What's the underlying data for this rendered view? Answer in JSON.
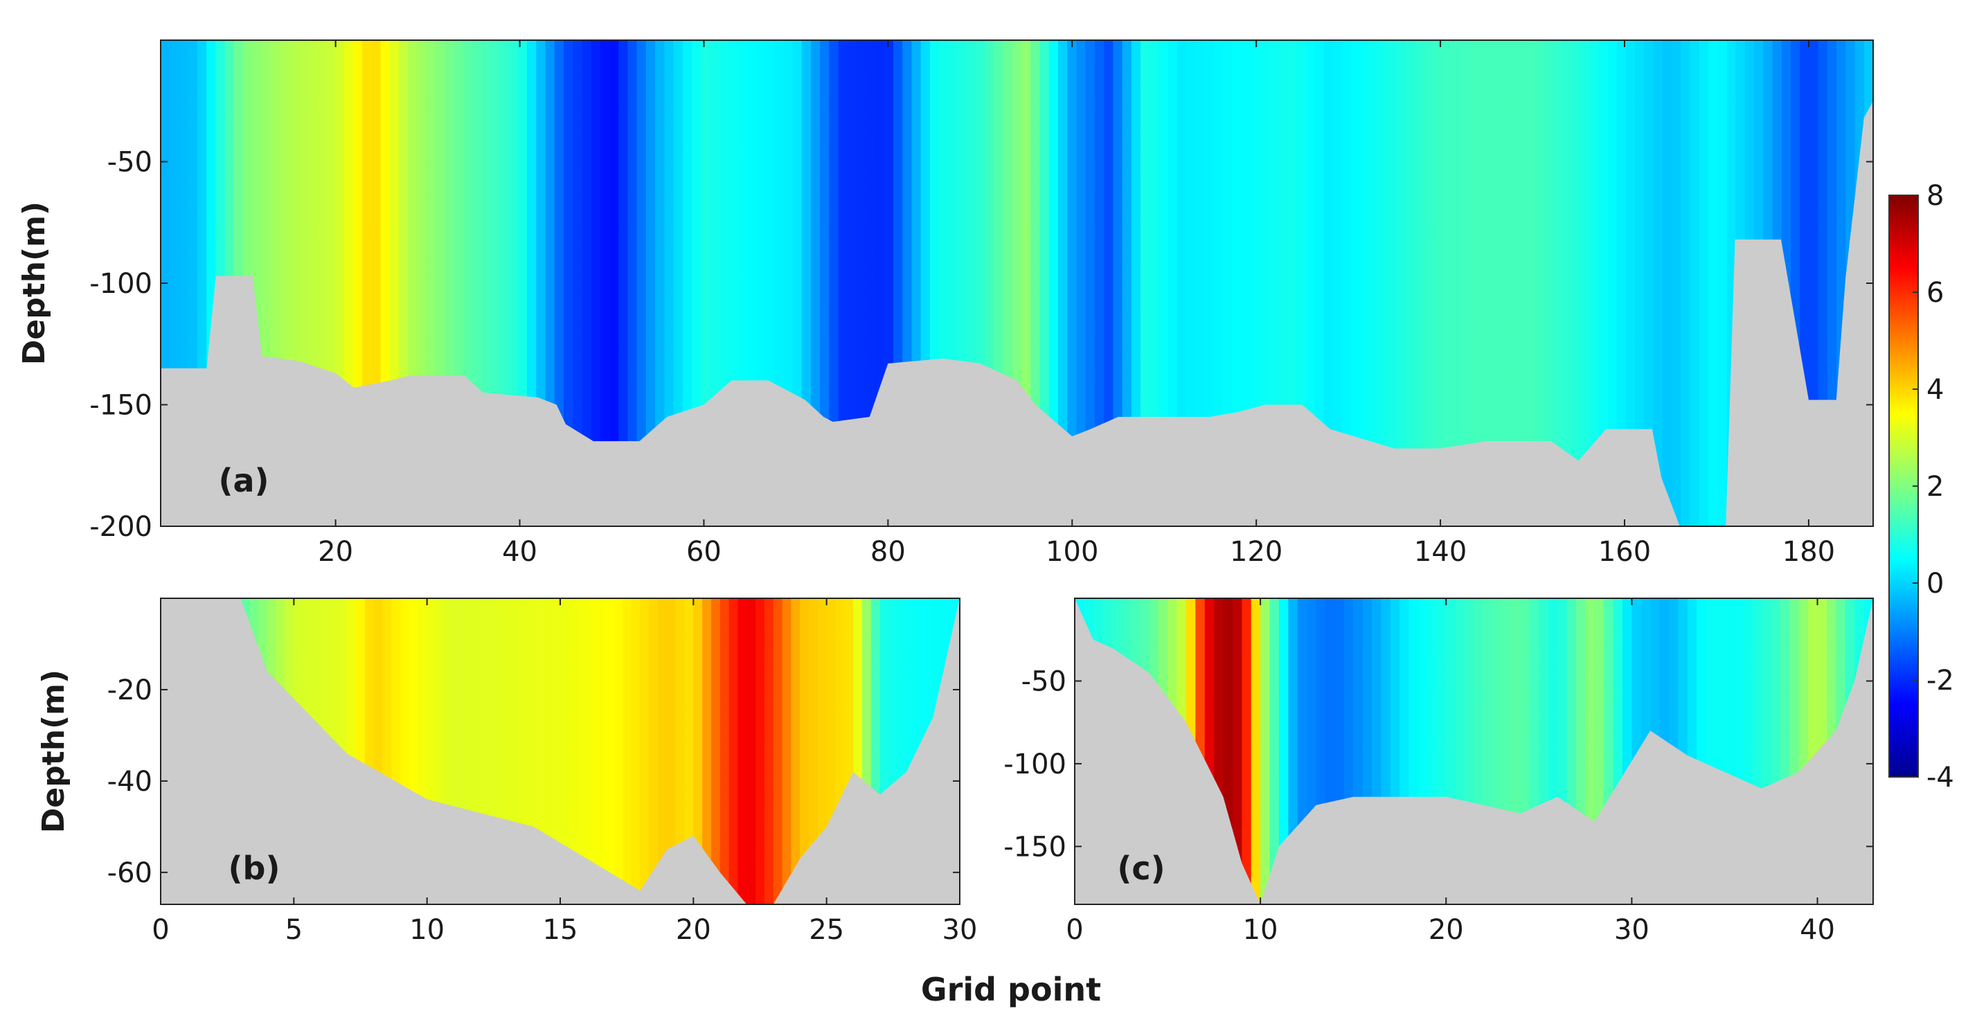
{
  "figure": {
    "xlabel": "Grid point",
    "colorbar": {
      "min": -4,
      "max": 8,
      "ticks": [
        "8",
        "6",
        "4",
        "2",
        "0",
        "-2",
        "-4"
      ],
      "colormap": "jet"
    }
  },
  "chart_data": [
    {
      "type": "heatmap",
      "panel_label": "(a)",
      "xlabel": "",
      "ylabel": "Depth(m)",
      "xlim": [
        1,
        187
      ],
      "ylim": [
        -200,
        0
      ],
      "xticks": [
        "20",
        "40",
        "60",
        "80",
        "100",
        "120",
        "140",
        "160",
        "180"
      ],
      "yticks": [
        "-50",
        "-100",
        "-150",
        "-200"
      ],
      "bottom_profile": {
        "x": [
          1,
          6,
          7,
          11,
          12,
          16,
          20,
          22,
          26,
          28,
          34,
          36,
          42,
          44,
          45,
          48,
          53,
          56,
          60,
          63,
          67,
          71,
          73,
          74,
          78,
          80,
          86,
          90,
          94,
          96,
          100,
          102,
          105,
          108,
          115,
          118,
          121,
          125,
          128,
          135,
          140,
          145,
          152,
          155,
          158,
          163,
          164,
          166,
          171,
          172,
          177,
          180,
          183,
          184,
          186,
          187
        ],
        "depth": [
          -135,
          -135,
          -97,
          -97,
          -130,
          -132,
          -137,
          -143,
          -140,
          -138,
          -138,
          -145,
          -147,
          -150,
          -158,
          -165,
          -165,
          -155,
          -150,
          -140,
          -140,
          -148,
          -155,
          -157,
          -155,
          -133,
          -131,
          -133,
          -140,
          -150,
          -163,
          -160,
          -155,
          -155,
          -155,
          -153,
          -150,
          -150,
          -160,
          -168,
          -168,
          -165,
          -165,
          -173,
          -160,
          -160,
          -180,
          -200,
          -200,
          -82,
          -82,
          -148,
          -148,
          -98,
          -32,
          -25
        ]
      },
      "field": {
        "x": [
          1,
          5,
          10,
          15,
          20,
          24,
          28,
          34,
          40,
          45,
          50,
          55,
          60,
          65,
          70,
          75,
          80,
          85,
          90,
          95,
          100,
          104,
          108,
          112,
          118,
          124,
          128,
          134,
          140,
          145,
          150,
          155,
          160,
          165,
          170,
          175,
          180,
          187
        ],
        "depth": [
          0,
          -30,
          -60,
          -90,
          -120,
          -150,
          -180
        ],
        "values": [
          [
            -0.4,
            -0.2,
            2.0,
            2.6,
            2.9,
            4.0,
            2.6,
            1.6,
            0.9,
            -1.6,
            -2.4,
            -0.4,
            0.8,
            0.5,
            0.3,
            -1.9,
            -2.0,
            0.6,
            1.0,
            2.2,
            -0.6,
            -1.6,
            0.8,
            0.3,
            0.5,
            0.7,
            0.3,
            0.7,
            1.2,
            1.3,
            1.3,
            0.9,
            0.3,
            -0.2,
            0.5,
            -0.3,
            -1.8,
            0.0
          ],
          [
            -0.4,
            0.2,
            2.0,
            2.6,
            3.0,
            3.5,
            2.5,
            1.8,
            0.9,
            -1.5,
            -2.3,
            -0.8,
            0.8,
            0.5,
            0.3,
            -1.9,
            -1.9,
            0.6,
            1.2,
            1.8,
            -0.6,
            -1.6,
            0.9,
            -0.4,
            0.8,
            0.8,
            0.3,
            0.7,
            1.5,
            1.6,
            1.4,
            0.8,
            0.2,
            -0.3,
            0.5,
            -0.2,
            -0.6,
            0.3
          ],
          [
            0.6,
            0.6,
            1.8,
            2.2,
            2.6,
            2.2,
            2.0,
            1.6,
            0.8,
            -1.4,
            -2.2,
            -0.9,
            0.8,
            0.6,
            0.2,
            -1.8,
            -1.9,
            0.6,
            1.2,
            1.5,
            -0.5,
            -1.5,
            0.8,
            -0.6,
            0.6,
            0.8,
            0.4,
            0.8,
            1.6,
            1.7,
            1.4,
            0.8,
            0.2,
            0.0,
            0.5,
            0.2,
            -0.2,
            0.4
          ],
          [
            0.6,
            0.7,
            1.5,
            1.9,
            2.2,
            2.0,
            1.4,
            1.1,
            0.6,
            -1.3,
            -2.2,
            -0.9,
            0.8,
            0.6,
            0.1,
            -1.7,
            -1.8,
            0.6,
            1.0,
            1.2,
            -0.5,
            -1.4,
            0.7,
            0.5,
            0.6,
            0.7,
            0.4,
            0.8,
            1.4,
            1.6,
            1.1,
            0.8,
            0.5,
            0.4,
            0.5,
            0.4,
            0.3,
            0.5
          ],
          [
            0.6,
            0.7,
            0.9,
            1.0,
            1.1,
            1.2,
            0.8,
            0.7,
            0.3,
            -1.1,
            -2.1,
            -0.8,
            0.6,
            0.5,
            0.1,
            -1.6,
            -1.7,
            0.3,
            0.7,
            1.6,
            -0.5,
            -1.3,
            0.5,
            0.5,
            0.5,
            0.5,
            0.4,
            0.6,
            0.8,
            0.8,
            0.6,
            0.5,
            0.1,
            0.4,
            0.5,
            0.4,
            -0.5,
            0.5
          ],
          [
            0.5,
            0.6,
            0.8,
            0.9,
            0.9,
            0.9,
            0.7,
            0.6,
            0.4,
            -0.7,
            -1.0,
            -0.4,
            0.3,
            0.2,
            0.0,
            -0.8,
            -0.9,
            0.2,
            0.4,
            0.5,
            -0.8,
            -0.6,
            0.2,
            -0.4,
            -0.6,
            0.2,
            0.3,
            0.4,
            0.5,
            0.4,
            0.4,
            0.4,
            0.1,
            0.3,
            0.4,
            0.3,
            -0.3,
            0.4
          ],
          [
            0.5,
            0.5,
            0.6,
            0.6,
            0.6,
            0.6,
            0.6,
            0.5,
            0.4,
            0.0,
            0.0,
            0.1,
            0.3,
            0.2,
            0.1,
            0.0,
            0.0,
            0.2,
            0.3,
            0.3,
            0.0,
            0.1,
            0.2,
            0.2,
            0.2,
            0.2,
            0.3,
            0.3,
            0.3,
            0.3,
            0.3,
            0.3,
            0.2,
            0.2,
            0.3,
            0.3,
            0.2,
            0.3
          ]
        ]
      }
    },
    {
      "type": "heatmap",
      "panel_label": "(b)",
      "xlabel": "",
      "ylabel": "Depth(m)",
      "xlim": [
        0,
        30
      ],
      "ylim": [
        -67,
        0
      ],
      "xticks": [
        "0",
        "5",
        "10",
        "15",
        "20",
        "25",
        "30"
      ],
      "yticks": [
        "-20",
        "-40",
        "-60"
      ],
      "bottom_profile": {
        "x": [
          0,
          3,
          4,
          7,
          10,
          14,
          18,
          19,
          20,
          21,
          22,
          23,
          24,
          25,
          26,
          27,
          28,
          29,
          30
        ],
        "depth": [
          0,
          0,
          -16,
          -34,
          -44,
          -50,
          -64,
          -55,
          -52,
          -60,
          -67,
          -67,
          -57,
          -50,
          -38,
          -43,
          -38,
          -26,
          0
        ]
      },
      "field": {
        "x": [
          0,
          3,
          5,
          7,
          8,
          9,
          11,
          13,
          15,
          17,
          18,
          19,
          20,
          21,
          22,
          23,
          24,
          25,
          26,
          27,
          28,
          30
        ],
        "depth": [
          0,
          -10,
          -20,
          -30,
          -40,
          -50,
          -60,
          -67
        ],
        "values": [
          [
            0.5,
            1.5,
            3.0,
            3.2,
            4.0,
            3.6,
            3.1,
            3.2,
            3.3,
            3.5,
            3.8,
            4.1,
            3.8,
            5.5,
            6.8,
            5.8,
            4.2,
            4.0,
            3.8,
            0.8,
            0.6,
            0.5
          ],
          [
            0.5,
            1.5,
            3.0,
            3.3,
            4.0,
            3.6,
            3.2,
            2.9,
            3.2,
            3.5,
            4.1,
            3.9,
            3.9,
            5.4,
            6.4,
            5.7,
            4.5,
            3.6,
            3.5,
            0.8,
            0.6,
            0.5
          ],
          [
            0.5,
            1.5,
            3.0,
            3.6,
            4.1,
            3.8,
            3.3,
            3.1,
            3.3,
            3.5,
            4.3,
            3.9,
            3.9,
            5.0,
            6.0,
            5.4,
            4.6,
            3.5,
            3.0,
            0.8,
            0.6,
            0.5
          ],
          [
            0.5,
            1.5,
            2.8,
            3.4,
            3.7,
            3.5,
            3.2,
            3.4,
            3.3,
            3.4,
            4.0,
            3.7,
            3.8,
            4.6,
            5.4,
            5.0,
            4.3,
            3.3,
            2.4,
            0.8,
            0.6,
            0.5
          ],
          [
            0.5,
            1.4,
            2.6,
            2.9,
            3.1,
            3.2,
            3.1,
            3.0,
            3.1,
            3.2,
            3.6,
            3.4,
            3.5,
            4.1,
            4.8,
            4.4,
            3.9,
            3.0,
            2.0,
            0.8,
            0.6,
            0.5
          ],
          [
            0.5,
            1.3,
            2.3,
            2.5,
            2.6,
            2.7,
            2.7,
            2.7,
            2.7,
            2.8,
            3.1,
            3.1,
            3.2,
            3.6,
            4.1,
            3.8,
            3.4,
            2.6,
            1.7,
            0.8,
            0.6,
            0.5
          ],
          [
            0.5,
            1.2,
            2.0,
            2.2,
            2.3,
            2.3,
            2.3,
            2.4,
            2.4,
            2.5,
            2.7,
            2.8,
            2.9,
            3.2,
            3.6,
            3.3,
            3.0,
            2.3,
            1.5,
            0.8,
            0.6,
            0.5
          ],
          [
            0.5,
            1.1,
            1.8,
            2.0,
            2.0,
            2.0,
            2.1,
            2.1,
            2.2,
            2.2,
            2.4,
            2.5,
            2.6,
            2.9,
            3.2,
            3.0,
            2.7,
            2.1,
            1.4,
            0.8,
            0.6,
            0.5
          ]
        ]
      }
    },
    {
      "type": "heatmap",
      "panel_label": "(c)",
      "xlabel": "",
      "ylabel": "",
      "xlim": [
        0,
        43
      ],
      "ylim": [
        -185,
        0
      ],
      "xticks": [
        "0",
        "10",
        "20",
        "30",
        "40"
      ],
      "yticks": [
        "-50",
        "-100",
        "-150"
      ],
      "bottom_profile": {
        "x": [
          0,
          1,
          2,
          4,
          6,
          8,
          9,
          10,
          11,
          13,
          15,
          20,
          24,
          26,
          28,
          31,
          33,
          35,
          37,
          39,
          41,
          42,
          43
        ],
        "depth": [
          0,
          -25,
          -30,
          -45,
          -75,
          -120,
          -160,
          -185,
          -150,
          -125,
          -120,
          -120,
          -130,
          -120,
          -135,
          -80,
          -95,
          -105,
          -115,
          -105,
          -80,
          -50,
          0
        ]
      },
      "field": {
        "x": [
          0,
          2,
          4,
          6,
          7,
          8,
          9,
          10,
          11,
          12,
          14,
          16,
          18,
          20,
          22,
          24,
          26,
          28,
          30,
          32,
          34,
          36,
          38,
          40,
          42,
          43
        ],
        "depth": [
          0,
          -30,
          -60,
          -90,
          -120,
          -150,
          -185
        ],
        "values": [
          [
            0.5,
            1.0,
            1.5,
            3.0,
            6.5,
            7.6,
            7.2,
            2.8,
            0.9,
            -0.8,
            -1.2,
            -0.6,
            0.4,
            0.8,
            1.3,
            1.6,
            0.7,
            2.3,
            0.0,
            -0.4,
            0.6,
            0.6,
            1.2,
            2.8,
            0.9,
            0.5
          ],
          [
            0.5,
            1.0,
            1.5,
            3.2,
            6.3,
            7.4,
            7.0,
            2.9,
            0.5,
            -0.7,
            -1.0,
            -0.4,
            0.6,
            0.8,
            1.3,
            1.6,
            0.7,
            2.2,
            0.1,
            -0.4,
            0.7,
            0.6,
            1.2,
            2.5,
            0.8,
            0.5
          ],
          [
            0.5,
            0.8,
            1.3,
            3.0,
            5.6,
            6.9,
            6.5,
            2.9,
            0.4,
            -0.5,
            -0.7,
            -0.2,
            0.6,
            0.7,
            1.1,
            1.3,
            0.6,
            1.6,
            0.2,
            -0.3,
            0.5,
            0.6,
            1.0,
            1.8,
            0.7,
            0.5
          ],
          [
            0.5,
            0.7,
            0.9,
            2.2,
            4.4,
            5.8,
            5.6,
            2.8,
            0.5,
            -0.2,
            -0.3,
            0.0,
            0.4,
            0.5,
            0.7,
            0.8,
            0.5,
            0.9,
            0.3,
            0.0,
            0.3,
            0.4,
            0.6,
            1.0,
            0.6,
            0.5
          ],
          [
            0.5,
            0.6,
            0.7,
            1.4,
            2.8,
            4.2,
            4.3,
            2.6,
            0.8,
            0.3,
            0.2,
            0.3,
            0.4,
            0.4,
            0.5,
            0.5,
            0.4,
            0.5,
            0.4,
            0.3,
            0.4,
            0.4,
            0.5,
            0.6,
            0.5,
            0.5
          ],
          [
            0.5,
            0.5,
            0.6,
            1.0,
            1.8,
            2.9,
            3.2,
            2.4,
            1.0,
            0.5,
            0.4,
            0.4,
            0.4,
            0.4,
            0.4,
            0.4,
            0.4,
            0.4,
            0.4,
            0.4,
            0.4,
            0.4,
            0.4,
            0.5,
            0.5,
            0.5
          ],
          [
            0.5,
            0.5,
            0.5,
            0.8,
            1.2,
            2.0,
            2.4,
            2.0,
            1.0,
            0.5,
            0.4,
            0.4,
            0.4,
            0.4,
            0.4,
            0.4,
            0.4,
            0.4,
            0.4,
            0.4,
            0.4,
            0.4,
            0.4,
            0.5,
            0.5,
            0.5
          ]
        ]
      }
    }
  ]
}
